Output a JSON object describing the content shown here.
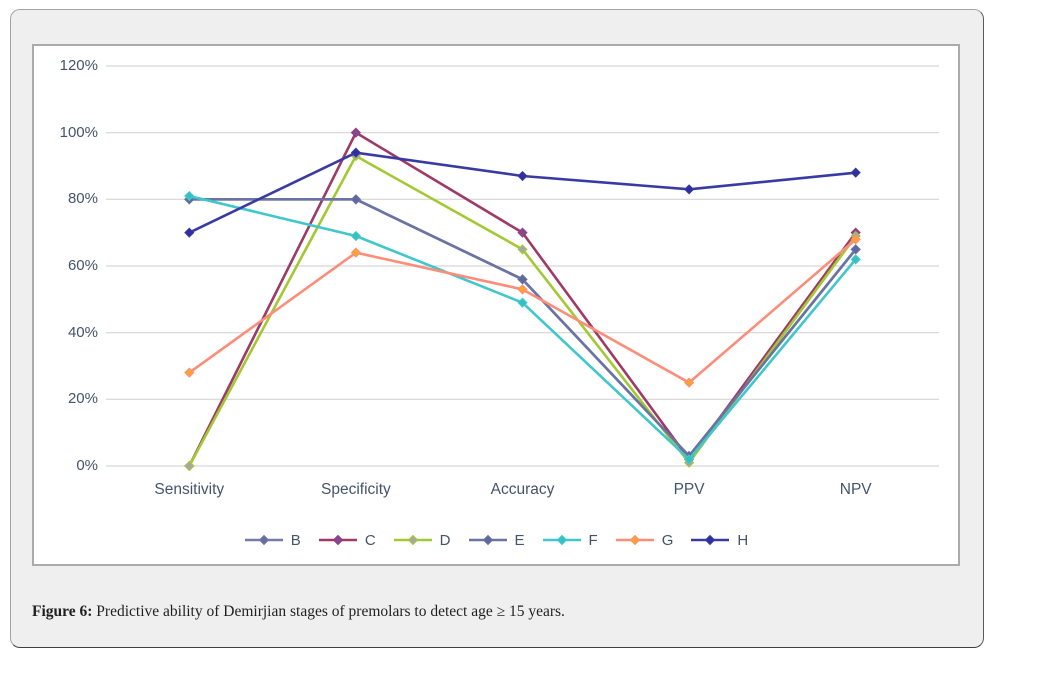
{
  "page": {
    "background": "#ffffff"
  },
  "figure_card": {
    "background": "#efefef",
    "border_color": "#8c8c8c"
  },
  "chart_panel": {
    "background": "#ffffff",
    "border_color": "#ababab"
  },
  "caption": {
    "prefix": "Figure 6:",
    "body": " Predictive ability of Demirjian stages of premolars to detect age ≥ 15 years."
  },
  "chart_data": {
    "type": "line",
    "title": "",
    "xlabel": "",
    "ylabel": "",
    "categories": [
      "Sensitivity",
      "Specificity",
      "Accuracy",
      "PPV",
      "NPV"
    ],
    "ytick_labels": [
      "0%",
      "20%",
      "40%",
      "60%",
      "80%",
      "100%",
      "120%"
    ],
    "ytick_values": [
      0,
      20,
      40,
      60,
      80,
      100,
      120
    ],
    "ylim": [
      0,
      120
    ],
    "grid": true,
    "gridline_color": "#d6d6d6",
    "axis_text_color": "#44546A",
    "legend_position": "bottom",
    "series": [
      {
        "name": "B",
        "color": "#767CA8",
        "marker_color": "#666DA3",
        "values": [
          80,
          80,
          56,
          3,
          65
        ]
      },
      {
        "name": "C",
        "color": "#9E3A66",
        "marker_color": "#7D4A9C",
        "values": [
          0,
          100,
          70,
          2,
          70
        ]
      },
      {
        "name": "D",
        "color": "#A3C932",
        "marker_color": "#A6A6A6",
        "values": [
          0,
          93,
          65,
          1,
          69
        ]
      },
      {
        "name": "E",
        "color": "#6A73A2",
        "marker_color": "#5F67A0",
        "values": [
          80,
          80,
          56,
          3,
          65
        ]
      },
      {
        "name": "F",
        "color": "#40C7CB",
        "marker_color": "#35C0C4",
        "values": [
          81,
          69,
          49,
          2,
          62
        ]
      },
      {
        "name": "G",
        "color": "#FC8D79",
        "marker_color": "#FFA233",
        "values": [
          28,
          64,
          53,
          25,
          68
        ]
      },
      {
        "name": "H",
        "color": "#3A3BA2",
        "marker_color": "#2F30A0",
        "values": [
          70,
          94,
          87,
          83,
          88
        ]
      }
    ]
  }
}
